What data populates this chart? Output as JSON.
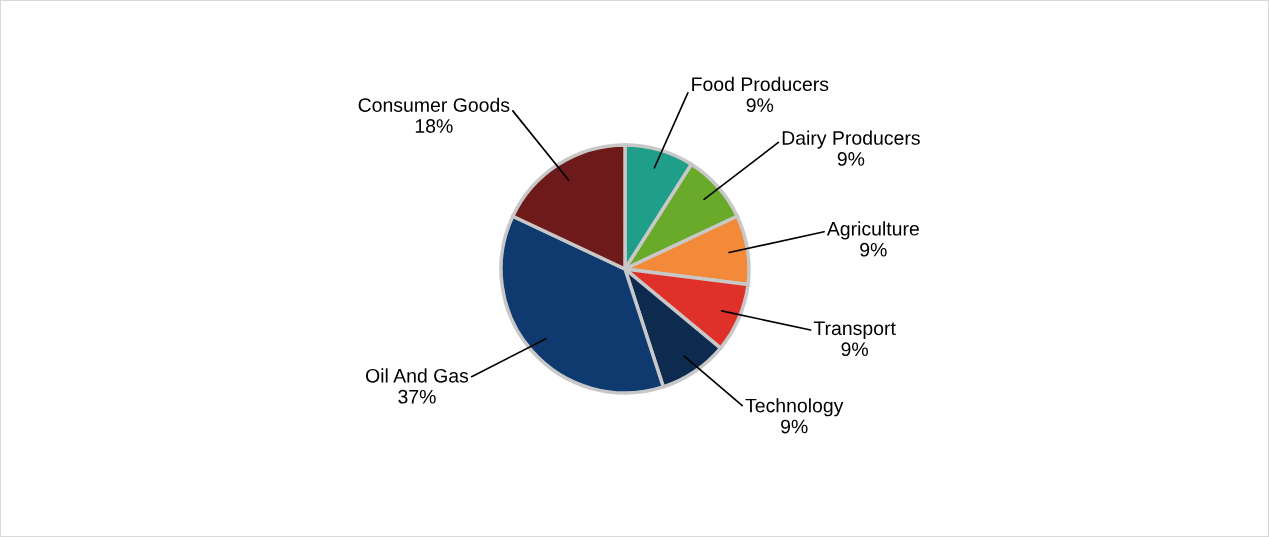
{
  "chart_data": {
    "type": "pie",
    "categories": [
      "Food Producers",
      "Dairy Producers",
      "Agriculture",
      "Transport",
      "Technology",
      "Oil And Gas",
      "Consumer Goods"
    ],
    "values": [
      9,
      9,
      9,
      9,
      9,
      37,
      18
    ],
    "value_labels": [
      "9%",
      "9%",
      "9%",
      "9%",
      "9%",
      "37%",
      "18%"
    ],
    "colors": [
      "#1f9e89",
      "#6aaa2a",
      "#f28a3a",
      "#e0302a",
      "#0d2a4f",
      "#0f3a70",
      "#6e1a1a"
    ]
  }
}
